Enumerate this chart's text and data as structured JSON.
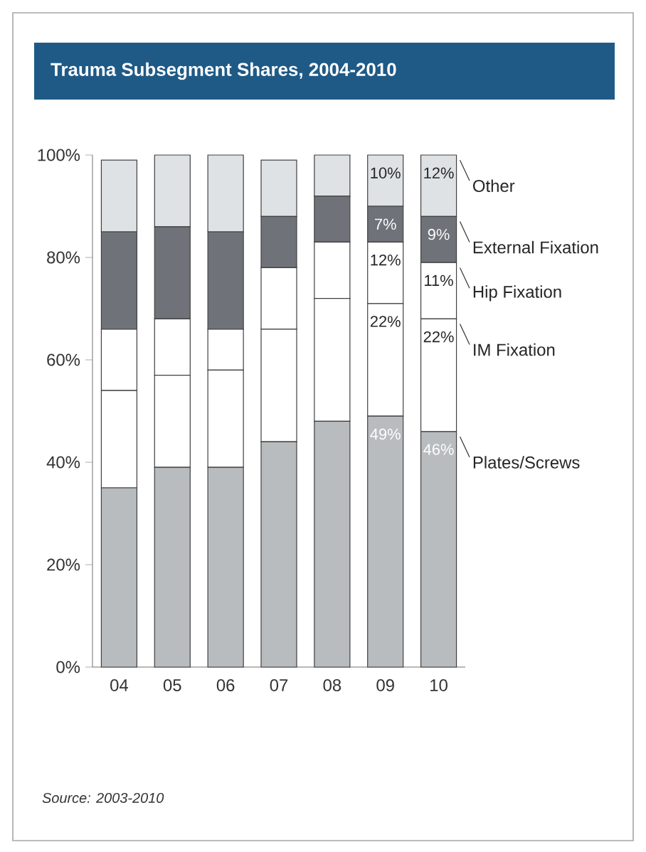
{
  "chart_data": {
    "type": "bar",
    "stacked": true,
    "title": "Trauma Subsegment Shares, 2004-2010",
    "categories": [
      "04",
      "05",
      "06",
      "07",
      "08",
      "09",
      "10"
    ],
    "series": [
      {
        "name": "Plates/Screws",
        "color": "#b9bcbf",
        "values": [
          35,
          39,
          39,
          44,
          48,
          49,
          46
        ],
        "value_labels": [
          null,
          null,
          null,
          null,
          null,
          "49%",
          "46%"
        ]
      },
      {
        "name": "IM Fixation",
        "color": "#ffffff",
        "values": [
          19,
          18,
          19,
          22,
          24,
          22,
          22
        ],
        "value_labels": [
          null,
          null,
          null,
          null,
          null,
          "22%",
          "22%"
        ]
      },
      {
        "name": "Hip Fixation",
        "color": "#ffffff",
        "values": [
          12,
          11,
          8,
          12,
          11,
          12,
          11
        ],
        "value_labels": [
          null,
          null,
          null,
          null,
          null,
          "12%",
          "11%"
        ]
      },
      {
        "name": "External Fixation",
        "color": "#6f7379",
        "values": [
          19,
          18,
          19,
          10,
          9,
          7,
          9
        ],
        "value_labels": [
          null,
          null,
          null,
          null,
          null,
          "7%",
          "9%"
        ]
      },
      {
        "name": "Other",
        "color": "#dfe2e5",
        "values": [
          14,
          14,
          15,
          11,
          8,
          10,
          12
        ],
        "value_labels": [
          null,
          null,
          null,
          null,
          null,
          "10%",
          "12%"
        ]
      }
    ],
    "legend": "right",
    "ylim": [
      0,
      100
    ],
    "yticks": [
      {
        "value": 0,
        "label": "0%"
      },
      {
        "value": 20,
        "label": "20%"
      },
      {
        "value": 40,
        "label": "40%"
      },
      {
        "value": 60,
        "label": "60%"
      },
      {
        "value": 80,
        "label": "80%"
      },
      {
        "value": 100,
        "label": "100%"
      }
    ],
    "annotations": [
      "Source: 2003-2010"
    ]
  }
}
